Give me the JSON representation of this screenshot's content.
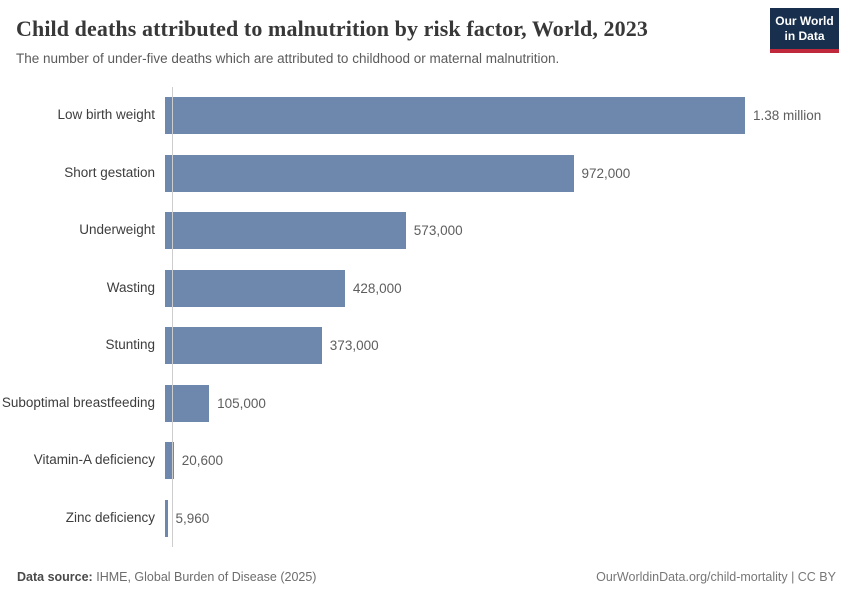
{
  "header": {
    "title": "Child deaths attributed to malnutrition by risk factor, World, 2023",
    "subtitle": "The number of under-five deaths which are attributed to childhood or maternal malnutrition.",
    "logo": {
      "line1": "Our World",
      "line2": "in Data"
    }
  },
  "chart_data": {
    "type": "bar",
    "orientation": "horizontal",
    "title": "Child deaths attributed to malnutrition by risk factor, World, 2023",
    "categories": [
      "Low birth weight",
      "Short gestation",
      "Underweight",
      "Wasting",
      "Stunting",
      "Suboptimal breastfeeding",
      "Vitamin-A deficiency",
      "Zinc deficiency"
    ],
    "values": [
      1380000,
      972000,
      573000,
      428000,
      373000,
      105000,
      20600,
      5960
    ],
    "value_labels": [
      "1.38 million",
      "972,000",
      "573,000",
      "428,000",
      "373,000",
      "105,000",
      "20,600",
      "5,960"
    ],
    "xlim": [
      0,
      1380000
    ],
    "grid": false,
    "legend": "none",
    "bar_color": "#6d87ad"
  },
  "footer": {
    "datasource_label": "Data source:",
    "datasource_value": "IHME, Global Burden of Disease (2025)",
    "attribution": "OurWorldinData.org/child-mortality | CC BY"
  },
  "colors": {
    "bar": "#6d87ad",
    "axis": "#cdcdcd",
    "logo_background": "#18304d",
    "logo_accent": "#c0293b",
    "title_text": "#383838",
    "subtitle_text": "#5b5b5b"
  }
}
